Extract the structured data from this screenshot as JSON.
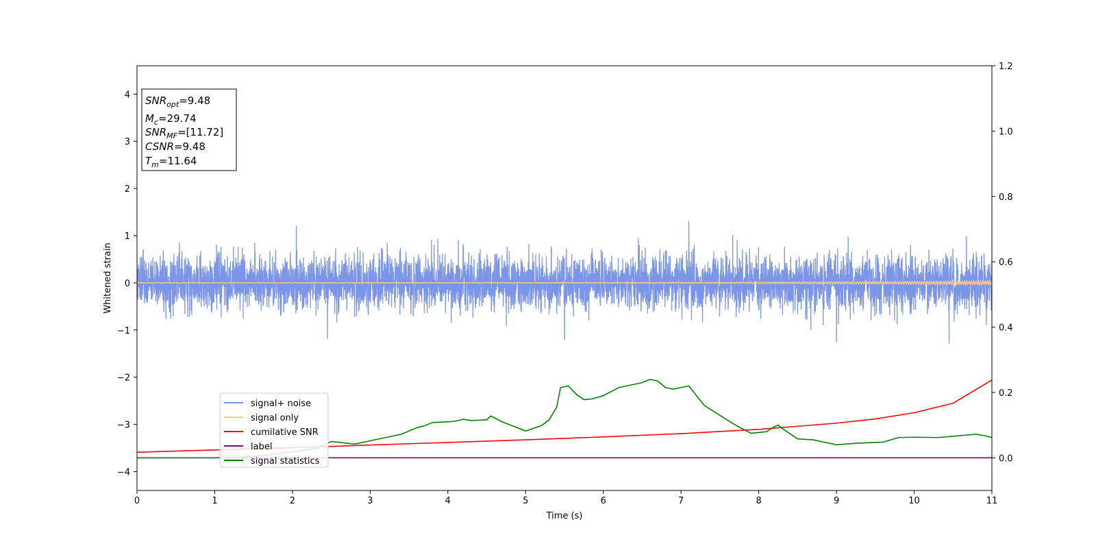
{
  "chart_data": {
    "type": "line",
    "title": "",
    "xlabel": "Time (s)",
    "ylabel": "Whitened strain",
    "xlim": [
      0,
      11
    ],
    "ylim": [
      -4.4,
      4.6
    ],
    "y2lim": [
      -0.1,
      1.2
    ],
    "x_ticks": [
      0,
      1,
      2,
      3,
      4,
      5,
      6,
      7,
      8,
      9,
      10,
      11
    ],
    "y_ticks": [
      -4,
      -3,
      -2,
      -1,
      0,
      1,
      2,
      3,
      4
    ],
    "y2_ticks": [
      "0.0",
      "0.2",
      "0.4",
      "0.6",
      "0.8",
      "1.0",
      "1.2"
    ],
    "grid": false,
    "legend_position": "lower-left",
    "annotation": [
      {
        "main": "SNR",
        "sub": "opt",
        "value": "=9.48"
      },
      {
        "main": "M",
        "sub": "c",
        "value": "=29.74"
      },
      {
        "main": "SNR",
        "sub": "MF",
        "value": "=[11.72]"
      },
      {
        "main": "CSNR",
        "sub": "",
        "value": "=9.48"
      },
      {
        "main": "T",
        "sub": "m",
        "value": "=11.64"
      }
    ],
    "series": [
      {
        "name": "signal+ noise",
        "axis": "left",
        "color": "#7b95e8",
        "style": "noise",
        "typical_abs_max": 0.75,
        "peak_abs": 1.3,
        "peaks": [
          [
            2.05,
            1.2
          ],
          [
            7.1,
            1.3
          ],
          [
            10.45,
            -1.28
          ],
          [
            9.0,
            -1.25
          ],
          [
            5.5,
            -1.2
          ],
          [
            2.45,
            -1.18
          ]
        ]
      },
      {
        "name": "signal only",
        "axis": "left",
        "color": "#ffcc80",
        "style": "chirp",
        "amplitude_start": 0.005,
        "amplitude_end": 0.04
      },
      {
        "name": "cumilative SNR",
        "axis": "right",
        "color": "#ff0000",
        "x": [
          0,
          1,
          2,
          3,
          4,
          5,
          6,
          7,
          8,
          9,
          9.5,
          10,
          10.5,
          11
        ],
        "y": [
          0.017,
          0.024,
          0.031,
          0.039,
          0.047,
          0.055,
          0.064,
          0.074,
          0.087,
          0.106,
          0.119,
          0.138,
          0.167,
          0.238
        ]
      },
      {
        "name": "label",
        "axis": "right",
        "color": "#800080",
        "x": [
          0,
          11
        ],
        "y": [
          0,
          0
        ]
      },
      {
        "name": "signal statistics",
        "axis": "right",
        "color": "#008000",
        "x": [
          0,
          1,
          1.5,
          2.0,
          2.3,
          2.5,
          2.8,
          3.0,
          3.2,
          3.4,
          3.6,
          3.7,
          3.8,
          4.0,
          4.1,
          4.2,
          4.3,
          4.5,
          4.55,
          4.7,
          5.0,
          5.2,
          5.3,
          5.4,
          5.45,
          5.55,
          5.65,
          5.75,
          5.85,
          6.0,
          6.2,
          6.3,
          6.5,
          6.6,
          6.7,
          6.8,
          6.9,
          7.0,
          7.1,
          7.2,
          7.3,
          7.5,
          7.7,
          7.9,
          8.1,
          8.2,
          8.25,
          8.3,
          8.5,
          8.7,
          9.0,
          9.3,
          9.6,
          9.8,
          10.0,
          10.3,
          10.6,
          10.8,
          10.9,
          11.0
        ],
        "y": [
          0.0,
          0.0,
          0.004,
          0.018,
          0.028,
          0.05,
          0.042,
          0.052,
          0.062,
          0.072,
          0.092,
          0.098,
          0.108,
          0.11,
          0.112,
          0.118,
          0.114,
          0.116,
          0.128,
          0.11,
          0.082,
          0.098,
          0.115,
          0.155,
          0.215,
          0.22,
          0.195,
          0.178,
          0.18,
          0.19,
          0.215,
          0.22,
          0.23,
          0.24,
          0.235,
          0.215,
          0.21,
          0.215,
          0.22,
          0.19,
          0.16,
          0.13,
          0.1,
          0.075,
          0.08,
          0.095,
          0.1,
          0.09,
          0.058,
          0.055,
          0.04,
          0.045,
          0.048,
          0.062,
          0.063,
          0.062,
          0.068,
          0.072,
          0.068,
          0.062
        ]
      }
    ]
  }
}
